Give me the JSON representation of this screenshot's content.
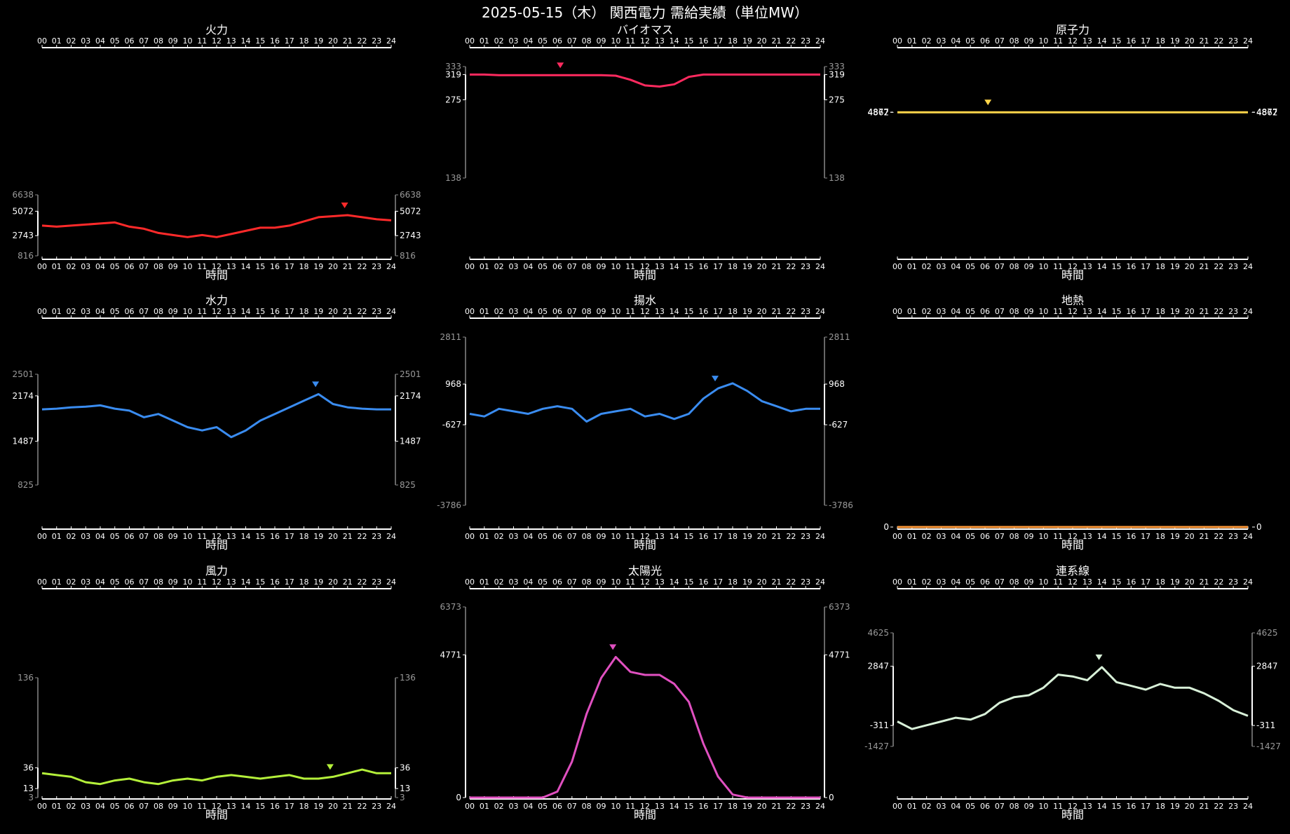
{
  "title": "2025-05-15（木） 関西電力 需給実績（単位MW）",
  "hour_labels": [
    "00",
    "01",
    "02",
    "03",
    "04",
    "05",
    "06",
    "07",
    "08",
    "09",
    "10",
    "11",
    "12",
    "13",
    "14",
    "15",
    "16",
    "17",
    "18",
    "19",
    "20",
    "21",
    "22",
    "23",
    "24"
  ],
  "xlabel": "時間",
  "chart_data": [
    {
      "type": "line",
      "title": "火力",
      "color": "#ff2a2a",
      "ylim": [
        816,
        6638
      ],
      "yticks": [
        816,
        2743,
        5072,
        6638
      ],
      "highlight_ticks": [
        2743,
        5072
      ],
      "marker_hour": 20.8,
      "series": [
        {
          "values": [
            3700,
            3600,
            3700,
            3800,
            3900,
            4000,
            3600,
            3400,
            3000,
            2800,
            2600,
            2800,
            2600,
            2900,
            3200,
            3500,
            3500,
            3700,
            4100,
            4500,
            4600,
            4700,
            4500,
            4300,
            4200
          ]
        }
      ]
    },
    {
      "type": "line",
      "title": "バイオマス",
      "color": "#ff2a5f",
      "ylim": [
        138,
        333
      ],
      "yticks": [
        138,
        275,
        319,
        333
      ],
      "highlight_ticks": [
        275,
        319
      ],
      "marker_hour": 6.2,
      "series": [
        {
          "values": [
            319,
            319,
            318,
            318,
            318,
            318,
            318,
            318,
            318,
            318,
            317,
            310,
            300,
            298,
            302,
            315,
            319,
            319,
            319,
            319,
            319,
            319,
            319,
            319,
            319
          ]
        }
      ]
    },
    {
      "type": "line",
      "title": "原子力",
      "color": "#ffd54a",
      "ylim": [
        4562,
        4877
      ],
      "yticks": [
        4862,
        4877
      ],
      "highlight_ticks": [
        4862,
        4877
      ],
      "marker_hour": 6.2,
      "series": [
        {
          "values": [
            4870,
            4868,
            4866,
            4866,
            4868,
            4869,
            4870,
            4870,
            4870,
            4870,
            4870,
            4870,
            4870,
            4870,
            4870,
            4870,
            4870,
            4870,
            4870,
            4870,
            4870,
            4870,
            4870,
            4870,
            4870
          ]
        }
      ]
    },
    {
      "type": "line",
      "title": "水力",
      "color": "#3a8cf0",
      "ylim": [
        825,
        2501
      ],
      "yticks": [
        825,
        1487,
        2174,
        2501
      ],
      "highlight_ticks": [
        1487,
        2174
      ],
      "marker_hour": 18.8,
      "series": [
        {
          "values": [
            1970,
            1980,
            2000,
            2010,
            2030,
            1980,
            1950,
            1850,
            1900,
            1800,
            1700,
            1650,
            1700,
            1550,
            1650,
            1800,
            1900,
            2000,
            2100,
            2200,
            2050,
            2000,
            1980,
            1970,
            1970
          ]
        }
      ]
    },
    {
      "type": "line",
      "title": "揚水",
      "color": "#3a8cf0",
      "ylim": [
        -3786,
        2811
      ],
      "yticks": [
        -3786,
        -627,
        968,
        2811
      ],
      "highlight_ticks": [
        -627,
        968
      ],
      "marker_hour": 16.8,
      "series": [
        {
          "values": [
            -200,
            -300,
            0,
            -100,
            -200,
            0,
            100,
            0,
            -500,
            -200,
            -100,
            0,
            -300,
            -200,
            -400,
            -200,
            400,
            800,
            1000,
            700,
            300,
            100,
            -100,
            0,
            0
          ]
        }
      ]
    },
    {
      "type": "line",
      "title": "地熱",
      "color": "#ff9a3a",
      "ylim": [
        0,
        1
      ],
      "yticks": [
        0.0
      ],
      "highlight_ticks": [
        0.0
      ],
      "marker_hour": null,
      "series": [
        {
          "values": [
            0,
            0,
            0,
            0,
            0,
            0,
            0,
            0,
            0,
            0,
            0,
            0,
            0,
            0,
            0,
            0,
            0,
            0,
            0,
            0,
            0,
            0,
            0,
            0,
            0
          ]
        }
      ]
    },
    {
      "type": "line",
      "title": "風力",
      "color": "#b4f03a",
      "ylim": [
        3,
        136
      ],
      "yticks": [
        3,
        13,
        36,
        136
      ],
      "highlight_ticks": [
        13,
        36
      ],
      "marker_hour": 19.8,
      "series": [
        {
          "values": [
            30,
            28,
            26,
            20,
            18,
            22,
            24,
            20,
            18,
            22,
            24,
            22,
            26,
            28,
            26,
            24,
            26,
            28,
            24,
            24,
            26,
            30,
            34,
            30,
            30
          ]
        }
      ]
    },
    {
      "type": "line",
      "title": "太陽光",
      "color": "#e050c0",
      "ylim": [
        0,
        6373
      ],
      "yticks": [
        0,
        4771,
        6373
      ],
      "highlight_ticks": [
        0,
        4771
      ],
      "marker_hour": 9.8,
      "series": [
        {
          "values": [
            0,
            0,
            0,
            0,
            0,
            0,
            200,
            1200,
            2800,
            4000,
            4700,
            4200,
            4100,
            4100,
            3800,
            3200,
            1800,
            700,
            100,
            0,
            0,
            0,
            0,
            0,
            0
          ]
        }
      ]
    },
    {
      "type": "line",
      "title": "連系線",
      "color": "#d8f0d8",
      "ylim": [
        -1427,
        4625
      ],
      "yticks": [
        -1427,
        -311,
        2847,
        4625
      ],
      "highlight_ticks": [
        -311,
        2847
      ],
      "marker_hour": 13.8,
      "series": [
        {
          "values": [
            -100,
            -500,
            -300,
            -100,
            100,
            0,
            300,
            900,
            1200,
            1300,
            1700,
            2400,
            2300,
            2100,
            2800,
            2000,
            1800,
            1600,
            1900,
            1700,
            1700,
            1400,
            1000,
            500,
            200
          ]
        }
      ]
    }
  ]
}
